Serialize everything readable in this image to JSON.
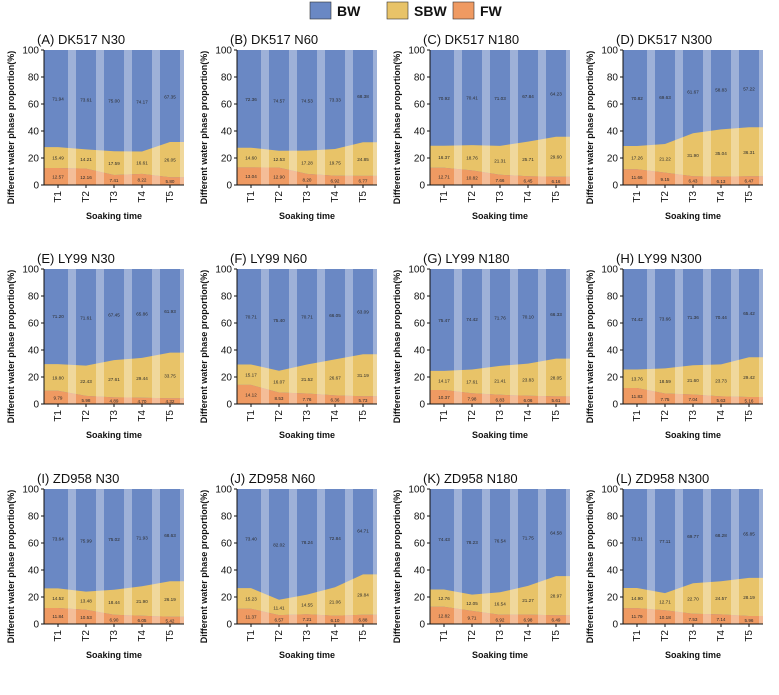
{
  "colors": {
    "BW": "#6A88C4",
    "SBW": "#E8C368",
    "FW": "#EF9A62"
  },
  "legend": [
    {
      "key": "BW",
      "label": "BW"
    },
    {
      "key": "SBW",
      "label": "SBW"
    },
    {
      "key": "FW",
      "label": "FW"
    }
  ],
  "chart_data": [
    {
      "type": "area",
      "title": "(A) DK517 N30",
      "xlabel": "Soaking time",
      "ylabel": "Different water phase proportion(%)",
      "ylim": [
        0,
        100
      ],
      "categories": [
        "T1",
        "T2",
        "T3",
        "T4",
        "T5"
      ],
      "series": [
        {
          "name": "FW",
          "values": [
            12.57,
            12.16,
            7.41,
            8.22,
            5.8
          ]
        },
        {
          "name": "SBW",
          "values": [
            15.49,
            14.21,
            17.59,
            16.61,
            26.05
          ]
        },
        {
          "name": "BW",
          "values": [
            71.94,
            73.61,
            75.0,
            74.17,
            67.35
          ]
        }
      ]
    },
    {
      "type": "area",
      "title": "(B) DK517 N60",
      "xlabel": "Soaking time",
      "ylabel": "Different water phase proportion(%)",
      "ylim": [
        0,
        100
      ],
      "categories": [
        "T1",
        "T2",
        "T3",
        "T4",
        "T5"
      ],
      "series": [
        {
          "name": "FW",
          "values": [
            13.04,
            12.9,
            8.2,
            6.92,
            6.77
          ]
        },
        {
          "name": "SBW",
          "values": [
            14.6,
            12.53,
            17.28,
            19.75,
            24.85
          ]
        },
        {
          "name": "BW",
          "values": [
            72.36,
            74.57,
            74.53,
            73.33,
            68.38
          ]
        }
      ]
    },
    {
      "type": "area",
      "title": "(C) DK517 N180",
      "xlabel": "Soaking time",
      "ylabel": "Different water phase proportion(%)",
      "ylim": [
        0,
        100
      ],
      "categories": [
        "T1",
        "T2",
        "T3",
        "T4",
        "T5"
      ],
      "series": [
        {
          "name": "FW",
          "values": [
            12.71,
            10.82,
            7.66,
            6.45,
            6.16
          ]
        },
        {
          "name": "SBW",
          "values": [
            16.37,
            18.76,
            21.31,
            25.71,
            29.6
          ]
        },
        {
          "name": "BW",
          "values": [
            70.92,
            70.41,
            71.03,
            67.84,
            64.23
          ]
        }
      ]
    },
    {
      "type": "area",
      "title": "(D) DK517 N300",
      "xlabel": "Soaking time",
      "ylabel": "Different water phase proportion(%)",
      "ylim": [
        0,
        100
      ],
      "categories": [
        "T1",
        "T2",
        "T3",
        "T4",
        "T5"
      ],
      "series": [
        {
          "name": "FW",
          "values": [
            11.66,
            9.15,
            6.43,
            6.13,
            6.47
          ]
        },
        {
          "name": "SBW",
          "values": [
            17.26,
            21.22,
            31.9,
            35.04,
            36.31
          ]
        },
        {
          "name": "BW",
          "values": [
            70.82,
            69.63,
            61.67,
            58.83,
            57.22
          ]
        }
      ]
    },
    {
      "type": "area",
      "title": "(E) LY99 N30",
      "xlabel": "Soaking time",
      "ylabel": "Different water phase proportion(%)",
      "ylim": [
        0,
        100
      ],
      "categories": [
        "T1",
        "T2",
        "T3",
        "T4",
        "T5"
      ],
      "series": [
        {
          "name": "FW",
          "values": [
            9.79,
            5.98,
            4.89,
            4.7,
            4.32
          ]
        },
        {
          "name": "SBW",
          "values": [
            19.8,
            22.43,
            27.61,
            29.44,
            33.75
          ]
        },
        {
          "name": "BW",
          "values": [
            71.2,
            71.61,
            67.45,
            65.86,
            61.93
          ]
        }
      ]
    },
    {
      "type": "area",
      "title": "(F) LY99 N60",
      "xlabel": "Soaking time",
      "ylabel": "Different water phase proportion(%)",
      "ylim": [
        0,
        100
      ],
      "categories": [
        "T1",
        "T2",
        "T3",
        "T4",
        "T5"
      ],
      "series": [
        {
          "name": "FW",
          "values": [
            14.12,
            8.53,
            7.76,
            6.36,
            5.73
          ]
        },
        {
          "name": "SBW",
          "values": [
            15.17,
            16.07,
            21.52,
            26.67,
            31.19
          ]
        },
        {
          "name": "BW",
          "values": [
            70.71,
            75.4,
            70.71,
            66.05,
            63.09
          ]
        }
      ]
    },
    {
      "type": "area",
      "title": "(G) LY99 N180",
      "xlabel": "Soaking time",
      "ylabel": "Different water phase proportion(%)",
      "ylim": [
        0,
        100
      ],
      "categories": [
        "T1",
        "T2",
        "T3",
        "T4",
        "T5"
      ],
      "series": [
        {
          "name": "FW",
          "values": [
            10.37,
            7.98,
            6.83,
            6.06,
            5.61
          ]
        },
        {
          "name": "SBW",
          "values": [
            14.17,
            17.61,
            21.41,
            23.83,
            28.05
          ]
        },
        {
          "name": "BW",
          "values": [
            75.47,
            74.42,
            71.76,
            70.1,
            66.33
          ]
        }
      ]
    },
    {
      "type": "area",
      "title": "(H) LY99 N300",
      "xlabel": "Soaking time",
      "ylabel": "Different water phase proportion(%)",
      "ylim": [
        0,
        100
      ],
      "categories": [
        "T1",
        "T2",
        "T3",
        "T4",
        "T5"
      ],
      "series": [
        {
          "name": "FW",
          "values": [
            11.83,
            7.75,
            7.04,
            5.63,
            5.16
          ]
        },
        {
          "name": "SBW",
          "values": [
            13.76,
            18.59,
            21.6,
            23.73,
            29.42
          ]
        },
        {
          "name": "BW",
          "values": [
            74.42,
            73.66,
            71.36,
            70.44,
            65.42
          ]
        }
      ]
    },
    {
      "type": "area",
      "title": "(I) ZD958 N30",
      "xlabel": "Soaking time",
      "ylabel": "Different water phase proportion(%)",
      "ylim": [
        0,
        100
      ],
      "categories": [
        "T1",
        "T2",
        "T3",
        "T4",
        "T5"
      ],
      "series": [
        {
          "name": "FW",
          "values": [
            11.84,
            10.53,
            6.9,
            6.05,
            5.42
          ]
        },
        {
          "name": "SBW",
          "values": [
            14.52,
            13.48,
            18.44,
            21.9,
            26.19
          ]
        },
        {
          "name": "BW",
          "values": [
            73.64,
            75.99,
            75.02,
            71.93,
            68.63
          ]
        }
      ]
    },
    {
      "type": "area",
      "title": "(J) ZD958 N60",
      "xlabel": "Soaking time",
      "ylabel": "Different water phase proportion(%)",
      "ylim": [
        0,
        100
      ],
      "categories": [
        "T1",
        "T2",
        "T3",
        "T4",
        "T5"
      ],
      "series": [
        {
          "name": "FW",
          "values": [
            11.37,
            6.57,
            7.21,
            6.1,
            6.88
          ]
        },
        {
          "name": "SBW",
          "values": [
            15.23,
            11.41,
            14.55,
            21.06,
            29.84
          ]
        },
        {
          "name": "BW",
          "values": [
            73.4,
            82.02,
            78.24,
            72.84,
            64.71
          ]
        }
      ]
    },
    {
      "type": "area",
      "title": "(K) ZD958 N180",
      "xlabel": "Soaking time",
      "ylabel": "Different water phase proportion(%)",
      "ylim": [
        0,
        100
      ],
      "categories": [
        "T1",
        "T2",
        "T3",
        "T4",
        "T5"
      ],
      "series": [
        {
          "name": "FW",
          "values": [
            12.82,
            9.71,
            6.92,
            6.98,
            6.49
          ]
        },
        {
          "name": "SBW",
          "values": [
            12.76,
            12.05,
            16.54,
            21.27,
            28.97
          ]
        },
        {
          "name": "BW",
          "values": [
            74.43,
            78.23,
            76.54,
            71.75,
            64.58
          ]
        }
      ]
    },
    {
      "type": "area",
      "title": "(L) ZD958 N300",
      "xlabel": "Soaking time",
      "ylabel": "Different water phase proportion(%)",
      "ylim": [
        0,
        100
      ],
      "categories": [
        "T1",
        "T2",
        "T3",
        "T4",
        "T5"
      ],
      "series": [
        {
          "name": "FW",
          "values": [
            11.79,
            10.18,
            7.53,
            7.14,
            5.96
          ]
        },
        {
          "name": "SBW",
          "values": [
            14.9,
            12.71,
            22.7,
            24.57,
            28.19
          ]
        },
        {
          "name": "BW",
          "values": [
            73.31,
            77.11,
            69.77,
            68.28,
            65.85
          ]
        }
      ]
    }
  ]
}
